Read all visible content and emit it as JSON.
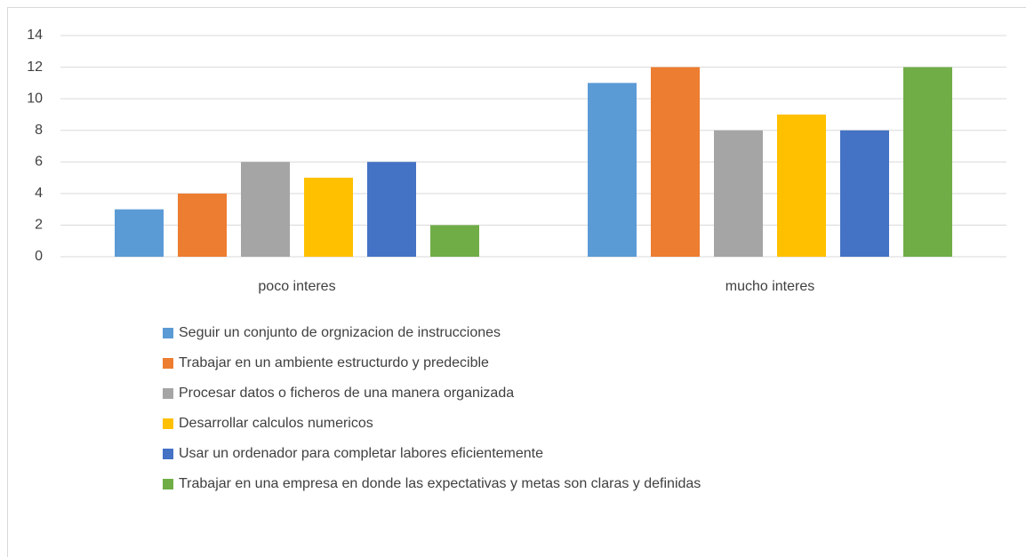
{
  "chart_data": {
    "type": "bar",
    "categories": [
      "poco interes",
      "mucho interes"
    ],
    "series": [
      {
        "name": "Seguir un conjunto de orgnizacion de instrucciones",
        "color": "#5b9bd5",
        "values": [
          3,
          11
        ]
      },
      {
        "name": "Trabajar en un ambiente estructurdo y predecible",
        "color": "#ed7d31",
        "values": [
          4,
          12
        ]
      },
      {
        "name": "Procesar datos o ficheros de una manera organizada",
        "color": "#a5a5a5",
        "values": [
          6,
          8
        ]
      },
      {
        "name": "Desarrollar calculos numericos",
        "color": "#ffc000",
        "values": [
          5,
          9
        ]
      },
      {
        "name": "Usar un ordenador para completar labores eficientemente",
        "color": "#4472c4",
        "values": [
          6,
          8
        ]
      },
      {
        "name": "Trabajar en una empresa en donde las expectativas y metas son claras y definidas",
        "color": "#70ad47",
        "values": [
          2,
          12
        ]
      }
    ],
    "ylim": [
      0,
      14
    ],
    "yticks": [
      0,
      2,
      4,
      6,
      8,
      10,
      12,
      14
    ],
    "grid": true,
    "legend": "bottom"
  }
}
